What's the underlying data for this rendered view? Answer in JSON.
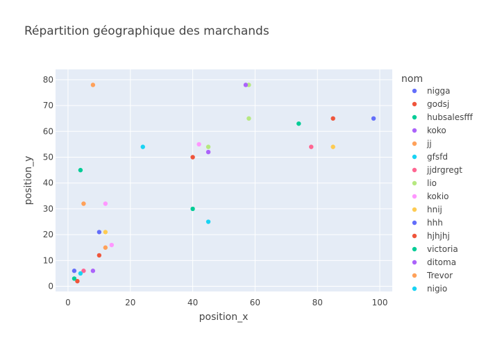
{
  "chart_data": {
    "type": "scatter",
    "title": "Répartition géographique des marchands",
    "xlabel": "position_x",
    "ylabel": "position_y",
    "xlim": [
      -4,
      104
    ],
    "ylim": [
      -2,
      84
    ],
    "xticks": [
      0,
      20,
      40,
      60,
      80,
      100
    ],
    "yticks": [
      0,
      10,
      20,
      30,
      40,
      50,
      60,
      70,
      80
    ],
    "grid": true,
    "legend_title": "nom",
    "legend_position": "right",
    "series": [
      {
        "name": "nigga",
        "color": "#636efa",
        "points": [
          [
            98,
            65
          ],
          [
            2,
            6
          ]
        ]
      },
      {
        "name": "godsj",
        "color": "#EF553B",
        "points": [
          [
            85,
            65
          ],
          [
            3,
            2
          ]
        ]
      },
      {
        "name": "hubsalesfff",
        "color": "#00cc96",
        "points": [
          [
            74,
            63
          ],
          [
            4,
            45
          ]
        ]
      },
      {
        "name": "koko",
        "color": "#ab63fa",
        "points": [
          [
            45,
            52
          ],
          [
            8,
            6
          ]
        ]
      },
      {
        "name": "jj",
        "color": "#FFA15A",
        "points": [
          [
            8,
            78
          ],
          [
            5,
            32
          ]
        ]
      },
      {
        "name": "gfsfd",
        "color": "#19d3f3",
        "points": [
          [
            24,
            54
          ],
          [
            45,
            25
          ]
        ]
      },
      {
        "name": "jjdrgregt",
        "color": "#FF6692",
        "points": [
          [
            78,
            54
          ],
          [
            5,
            6
          ]
        ]
      },
      {
        "name": "lio",
        "color": "#B6E880",
        "points": [
          [
            58,
            78
          ],
          [
            58,
            65
          ],
          [
            45,
            54
          ]
        ]
      },
      {
        "name": "kokio",
        "color": "#FF97FF",
        "points": [
          [
            42,
            55
          ],
          [
            12,
            32
          ],
          [
            14,
            16
          ]
        ]
      },
      {
        "name": "hnij",
        "color": "#FECB52",
        "points": [
          [
            85,
            54
          ],
          [
            12,
            21
          ]
        ]
      },
      {
        "name": "hhh",
        "color": "#636efa",
        "points": [
          [
            10,
            21
          ]
        ]
      },
      {
        "name": "hjhjhj",
        "color": "#EF553B",
        "points": [
          [
            40,
            50
          ],
          [
            10,
            12
          ]
        ]
      },
      {
        "name": "victoria",
        "color": "#00cc96",
        "points": [
          [
            40,
            30
          ],
          [
            2,
            3
          ]
        ]
      },
      {
        "name": "ditoma",
        "color": "#ab63fa",
        "points": [
          [
            57,
            78
          ]
        ]
      },
      {
        "name": "Trevor",
        "color": "#FFA15A",
        "points": [
          [
            12,
            15
          ]
        ]
      },
      {
        "name": "nigio",
        "color": "#19d3f3",
        "points": [
          [
            4,
            5
          ]
        ]
      }
    ]
  }
}
